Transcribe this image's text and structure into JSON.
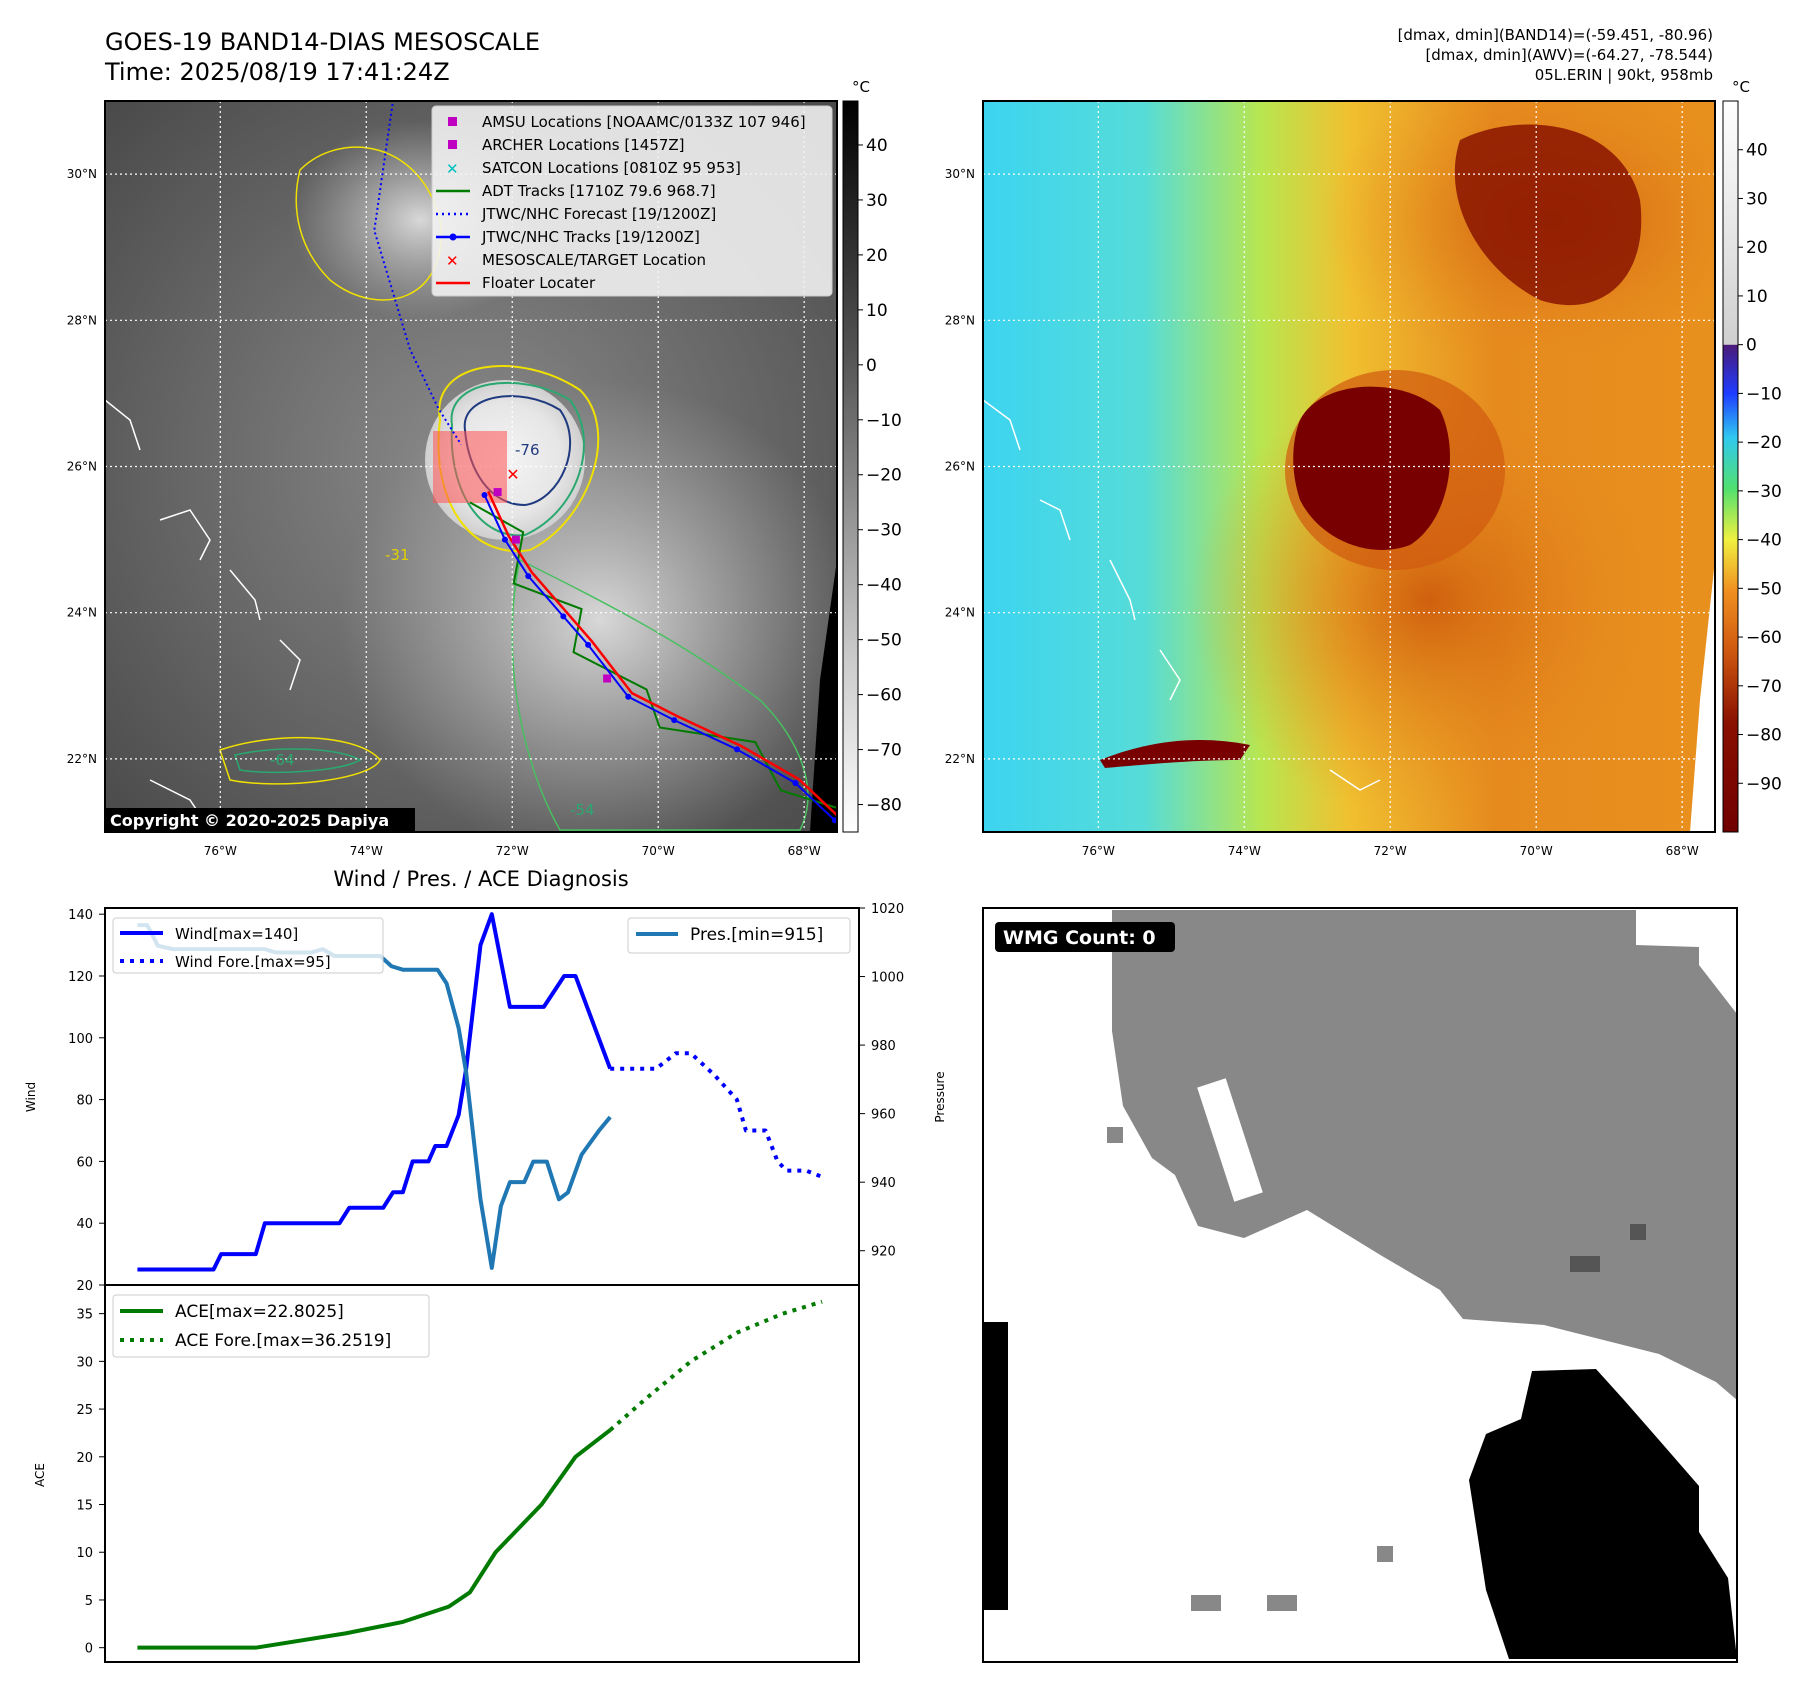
{
  "header": {
    "title": "GOES-19 BAND14-DIAS MESOSCALE",
    "time": "Time: 2025/08/19 17:41:24Z",
    "info_line1": "[dmax, dmin](BAND14)=(-59.451, -80.96)",
    "info_line2": "[dmax, dmin](AWV)=(-64.27, -78.544)",
    "info_line3": "05L.ERIN | 90kt, 958mb"
  },
  "maps": {
    "lon_range": [
      -77.58,
      -67.55
    ],
    "lat_range": [
      21.0,
      31.0
    ],
    "lat_ticks": [
      {
        "v": 30,
        "label": "30°N"
      },
      {
        "v": 28,
        "label": "28°N"
      },
      {
        "v": 26,
        "label": "26°N"
      },
      {
        "v": 24,
        "label": "24°N"
      },
      {
        "v": 22,
        "label": "22°N"
      }
    ],
    "lon_ticks": [
      {
        "v": -76,
        "label": "76°W"
      },
      {
        "v": -74,
        "label": "74°W"
      },
      {
        "v": -72,
        "label": "72°W"
      },
      {
        "v": -70,
        "label": "70°W"
      },
      {
        "v": -68,
        "label": "68°W"
      }
    ],
    "unit_label": "°C",
    "copyright": "Copyright © 2020-2025 Dapiya",
    "contour_labels": [
      "-76",
      "-64",
      "-54",
      "-31"
    ],
    "colorbar1": {
      "range": [
        -85,
        48
      ],
      "ticks": [
        40,
        30,
        20,
        10,
        0,
        -10,
        -20,
        -30,
        -40,
        -50,
        -60,
        -70,
        -80
      ],
      "labels": [
        "40",
        "30",
        "20",
        "10",
        "0",
        "−10",
        "−20",
        "−30",
        "−40",
        "−50",
        "−60",
        "−70",
        "−80"
      ]
    },
    "colorbar2": {
      "range": [
        -100,
        50
      ],
      "ticks": [
        40,
        30,
        20,
        10,
        0,
        -10,
        -20,
        -30,
        -40,
        -50,
        -60,
        -70,
        -80,
        -90
      ],
      "labels": [
        "40",
        "30",
        "20",
        "10",
        "0",
        "−10",
        "−20",
        "−30",
        "−40",
        "−50",
        "−60",
        "−70",
        "−80",
        "−90"
      ]
    },
    "legend": [
      {
        "label": "AMSU Locations [NOAAMC/0133Z 107 946]",
        "marker": "square",
        "color": "#c000c0"
      },
      {
        "label": "ARCHER Locations [1457Z]",
        "marker": "square",
        "color": "#c000c0"
      },
      {
        "label": "SATCON Locations [0810Z 95 953]",
        "marker": "x",
        "color": "#00c0c0"
      },
      {
        "label": "ADT Tracks [1710Z 79.6 968.7]",
        "marker": "line",
        "color": "#007a00"
      },
      {
        "label": "JTWC/NHC Forecast [19/1200Z]",
        "marker": "dotted",
        "color": "#0000ff"
      },
      {
        "label": "JTWC/NHC Tracks [19/1200Z]",
        "marker": "line-dot",
        "color": "#0000ff"
      },
      {
        "label": "MESOSCALE/TARGET Location",
        "marker": "x",
        "color": "#ff0000"
      },
      {
        "label": "Floater Locater",
        "marker": "line",
        "color": "#ff0000"
      }
    ],
    "forecast_track": [
      [
        -73.64,
        30.96
      ],
      [
        -73.89,
        29.23
      ],
      [
        -73.4,
        27.6
      ],
      [
        -73.01,
        26.79
      ],
      [
        -72.7,
        26.3
      ]
    ],
    "best_track": [
      [
        -72.38,
        25.61
      ],
      [
        -72.1,
        25.0
      ],
      [
        -71.78,
        24.5
      ],
      [
        -71.3,
        23.95
      ],
      [
        -70.96,
        23.56
      ],
      [
        -70.41,
        22.85
      ],
      [
        -69.78,
        22.53
      ],
      [
        -68.92,
        22.13
      ],
      [
        -68.12,
        21.67
      ],
      [
        -67.58,
        21.16
      ]
    ],
    "amsu_archer": [
      [
        -72.2,
        25.65
      ],
      [
        -71.95,
        25.0
      ],
      [
        -70.7,
        23.1
      ]
    ],
    "target": [
      -72.0,
      25.9
    ]
  },
  "chart_data": [
    {
      "type": "line",
      "title": "Wind / Pres. / ACE Diagnosis",
      "ylabel": "Wind",
      "y2label": "Pressure",
      "xlim": [
        0,
        100
      ],
      "ylim": [
        20,
        142
      ],
      "y2lim": [
        910,
        1020
      ],
      "yticks": [
        140,
        120,
        100,
        80,
        60,
        40,
        20
      ],
      "y2ticks": [
        1020,
        1000,
        980,
        960,
        940,
        920
      ],
      "series": [
        {
          "name": "Wind[max=140]",
          "axis": "left",
          "style": "solid",
          "color": "#0000ff",
          "x": [
            4.3,
            14.4,
            15.4,
            20,
            21.2,
            31.1,
            32.4,
            36.9,
            38.2,
            39.5,
            40.8,
            42.9,
            43.8,
            45.3,
            46.9,
            47.9,
            49.8,
            51.3,
            53.7,
            58.2,
            60.9,
            62.4,
            67
          ],
          "y": [
            25,
            25,
            30,
            30,
            40,
            40,
            45,
            45,
            50,
            50,
            60,
            60,
            65,
            65,
            75,
            90,
            130,
            140,
            110,
            110,
            120,
            120,
            90
          ]
        },
        {
          "name": "Wind Fore.[max=95]",
          "axis": "left",
          "style": "dotted",
          "color": "#0000ff",
          "x": [
            67,
            73.1,
            75.7,
            77.7,
            80.8,
            83.8,
            85,
            87.6,
            89.2,
            90.4,
            93,
            95.1
          ],
          "y": [
            90,
            90,
            95,
            95,
            88,
            80,
            70,
            70,
            60,
            57,
            57,
            55
          ]
        },
        {
          "name": "Pres.[min=915]",
          "axis": "right",
          "style": "solid",
          "color": "#1f77b4",
          "x": [
            4.3,
            5.6,
            7,
            9,
            21.2,
            22.7,
            27.3,
            28.9,
            30.4,
            36.5,
            38,
            39.5,
            44.1,
            45.3,
            46.9,
            47.9,
            49.8,
            51.3,
            52.5,
            53.7,
            55.6,
            56.8,
            58.6,
            60.2,
            61.4,
            63.2,
            65.5,
            67
          ],
          "y": [
            1015,
            1015,
            1009,
            1008,
            1008,
            1007,
            1007,
            1008,
            1006,
            1006,
            1003,
            1002,
            1002,
            998,
            985,
            972,
            935,
            915,
            933,
            940,
            940,
            946,
            946,
            935,
            937,
            948,
            955,
            959
          ]
        }
      ]
    },
    {
      "type": "line",
      "ylabel": "ACE",
      "xlim": [
        0,
        100
      ],
      "ylim": [
        -1.5,
        38
      ],
      "yticks": [
        35,
        30,
        25,
        20,
        15,
        10,
        5,
        0
      ],
      "series": [
        {
          "name": "ACE[max=22.8025]",
          "style": "solid",
          "color": "#007a00",
          "x": [
            4.3,
            20,
            31.9,
            39.5,
            45.6,
            48.4,
            51.8,
            57.9,
            62.4,
            67
          ],
          "y": [
            0,
            0,
            1.5,
            2.7,
            4.3,
            5.8,
            10,
            15,
            20,
            22.8
          ]
        },
        {
          "name": "ACE Fore.[max=36.2519]",
          "style": "dotted",
          "color": "#007a00",
          "x": [
            67,
            71.6,
            77.7,
            83.8,
            89.9,
            95.1
          ],
          "y": [
            22.8,
            26,
            30,
            33,
            35,
            36.25
          ]
        }
      ]
    }
  ],
  "wmg": {
    "label": "WMG Count: 0"
  }
}
